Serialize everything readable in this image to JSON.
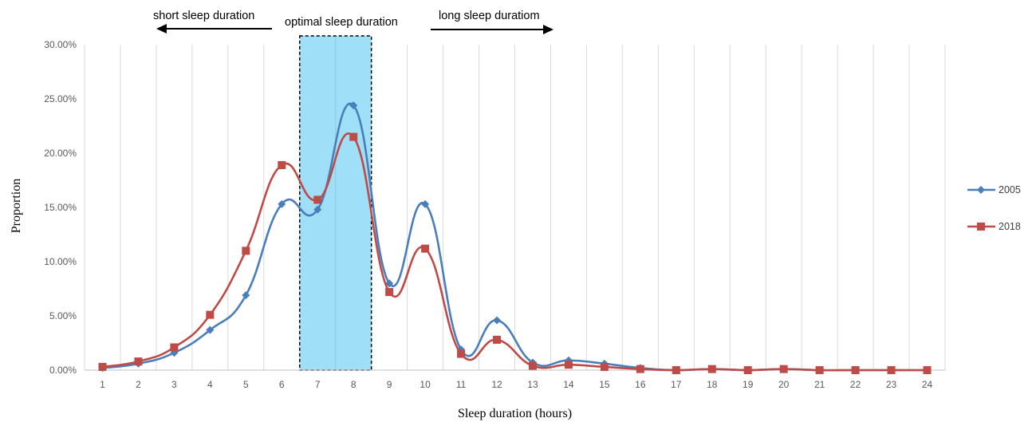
{
  "chart_data": {
    "type": "line",
    "title": "",
    "xlabel": "Sleep duration (hours)",
    "ylabel": "Proportion",
    "x": [
      1,
      2,
      3,
      4,
      5,
      6,
      7,
      8,
      9,
      10,
      11,
      12,
      13,
      14,
      15,
      16,
      17,
      18,
      19,
      20,
      21,
      22,
      23,
      24
    ],
    "ylim": [
      0,
      0.3
    ],
    "yticks": [
      0,
      0.05,
      0.1,
      0.15,
      0.2,
      0.25,
      0.3
    ],
    "ytick_labels": [
      "0.00%",
      "5.00%",
      "10.00%",
      "15.00%",
      "20.00%",
      "25.00%",
      "30.00%"
    ],
    "grid": "vertical",
    "legend_position": "right",
    "series": [
      {
        "name": "2005",
        "color": "#4A7EBB",
        "marker": "diamond",
        "values": [
          0.002,
          0.006,
          0.016,
          0.037,
          0.069,
          0.153,
          0.148,
          0.244,
          0.08,
          0.153,
          0.019,
          0.046,
          0.007,
          0.009,
          0.006,
          0.002,
          0.0,
          0.001,
          0.0,
          0.001,
          0.0,
          0.0,
          0.0,
          0.0
        ]
      },
      {
        "name": "2018",
        "color": "#BE4B48",
        "marker": "square",
        "values": [
          0.003,
          0.008,
          0.021,
          0.051,
          0.11,
          0.189,
          0.157,
          0.215,
          0.072,
          0.112,
          0.015,
          0.028,
          0.004,
          0.005,
          0.003,
          0.001,
          0.0,
          0.001,
          0.0,
          0.001,
          0.0,
          0.0,
          0.0,
          0.0
        ]
      }
    ],
    "annotations": {
      "short_label": "short sleep duration",
      "optimal_label": "optimal sleep duration",
      "long_label": "long sleep duratiom",
      "optimal_range": [
        6.5,
        8.5
      ],
      "highlight_color": "#9FDFF7"
    }
  }
}
